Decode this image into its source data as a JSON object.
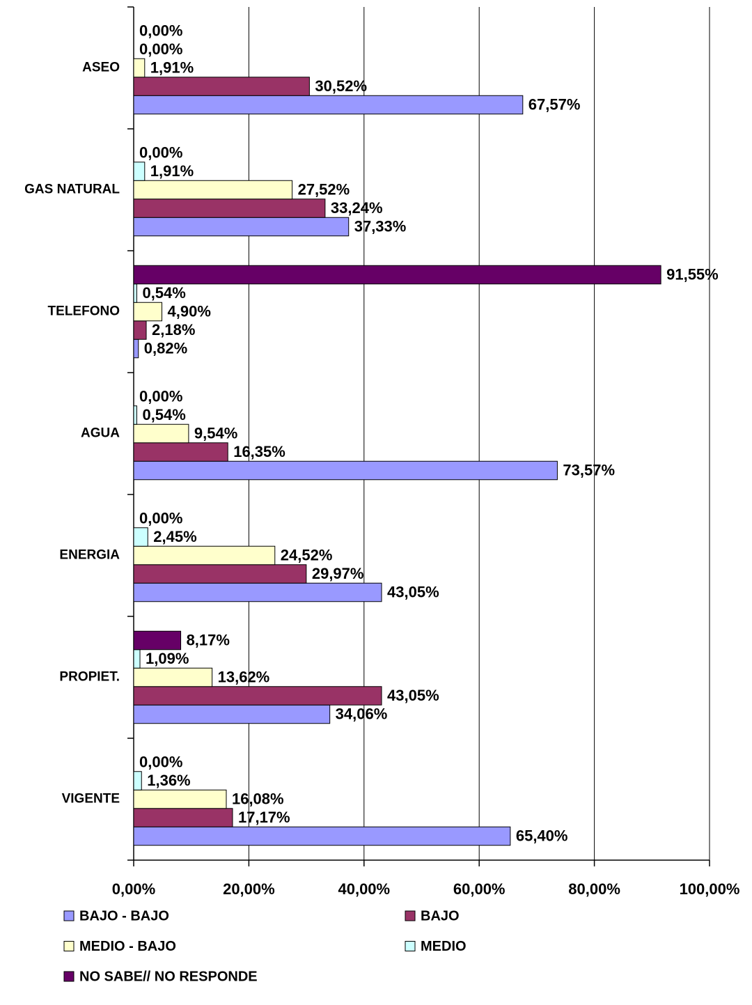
{
  "chart_data": {
    "type": "bar",
    "orientation": "horizontal",
    "categories": [
      "ASEO",
      "GAS NATURAL",
      "TELEFONO",
      "AGUA",
      "ENERGIA",
      "PROPIET.",
      "VIGENTE"
    ],
    "series": [
      {
        "name": "BAJO - BAJO",
        "color": "#9999ff",
        "values": [
          67.57,
          37.33,
          0.82,
          73.57,
          43.05,
          34.06,
          65.4
        ],
        "value_labels": [
          "67,57%",
          "37,33%",
          "0,82%",
          "73,57%",
          "43,05%",
          "34,06%",
          "65,40%"
        ]
      },
      {
        "name": "BAJO",
        "color": "#993366",
        "values": [
          30.52,
          33.24,
          2.18,
          16.35,
          29.97,
          43.05,
          17.17
        ],
        "value_labels": [
          "30,52%",
          "33,24%",
          "2,18%",
          "16,35%",
          "29,97%",
          "43,05%",
          "17,17%"
        ]
      },
      {
        "name": "MEDIO - BAJO",
        "color": "#ffffcc",
        "values": [
          1.91,
          27.52,
          4.9,
          9.54,
          24.52,
          13.62,
          16.08
        ],
        "value_labels": [
          "1,91%",
          "27,52%",
          "4,90%",
          "9,54%",
          "24,52%",
          "13,62%",
          "16,08%"
        ]
      },
      {
        "name": "MEDIO",
        "color": "#ccffff",
        "values": [
          0.0,
          1.91,
          0.54,
          0.54,
          2.45,
          1.09,
          1.36
        ],
        "value_labels": [
          "0,00%",
          "1,91%",
          "0,54%",
          "0,54%",
          "2,45%",
          "1,09%",
          "1,36%"
        ]
      },
      {
        "name": "NO SABE// NO RESPONDE",
        "color": "#660066",
        "values": [
          0.0,
          0.0,
          91.55,
          0.0,
          0.0,
          8.17,
          0.0
        ],
        "value_labels": [
          "0,00%",
          "0,00%",
          "91,55%",
          "0,00%",
          "0,00%",
          "8,17%",
          "0,00%"
        ]
      }
    ],
    "xlim": [
      0,
      100
    ],
    "xticks": [
      {
        "value": 0,
        "label": "0,00%"
      },
      {
        "value": 20,
        "label": "20,00%"
      },
      {
        "value": 40,
        "label": "40,00%"
      },
      {
        "value": 60,
        "label": "60,00%"
      },
      {
        "value": 80,
        "label": "80,00%"
      },
      {
        "value": 100,
        "label": "100,00%"
      }
    ],
    "grid": true,
    "legend": "bottom"
  }
}
